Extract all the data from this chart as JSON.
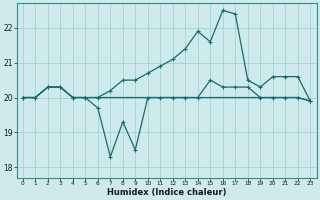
{
  "xlabel": "Humidex (Indice chaleur)",
  "background_color": "#ceeaea",
  "grid_color": "#9ccece",
  "line_color": "#1a6b6b",
  "xlim": [
    -0.5,
    23.5
  ],
  "ylim": [
    17.7,
    22.7
  ],
  "yticks": [
    18,
    19,
    20,
    21,
    22
  ],
  "xticks": [
    0,
    1,
    2,
    3,
    4,
    5,
    6,
    7,
    8,
    9,
    10,
    11,
    12,
    13,
    14,
    15,
    16,
    17,
    18,
    19,
    20,
    21,
    22,
    23
  ],
  "series1_dip": {
    "x": [
      0,
      1,
      2,
      3,
      4,
      5,
      6,
      7,
      8,
      9,
      10,
      11,
      12,
      13,
      14,
      15,
      16,
      17,
      18,
      19,
      20,
      21,
      22,
      23
    ],
    "y": [
      20.0,
      20.0,
      20.3,
      20.3,
      20.0,
      20.0,
      19.7,
      18.3,
      19.3,
      18.5,
      20.0,
      20.0,
      20.0,
      20.0,
      20.0,
      20.5,
      20.3,
      20.3,
      20.3,
      20.0,
      20.0,
      20.0,
      20.0,
      19.9
    ]
  },
  "series2_peak": {
    "x": [
      0,
      1,
      2,
      3,
      4,
      5,
      6,
      7,
      8,
      9,
      10,
      11,
      12,
      13,
      14,
      15,
      16,
      17,
      18,
      19,
      20,
      21,
      22,
      23
    ],
    "y": [
      20.0,
      20.0,
      20.3,
      20.3,
      20.0,
      20.0,
      20.0,
      20.2,
      20.5,
      20.5,
      20.7,
      20.9,
      21.1,
      21.4,
      21.9,
      21.6,
      22.5,
      22.4,
      20.5,
      20.3,
      20.6,
      20.6,
      20.6,
      19.9
    ]
  },
  "series3_flat": {
    "x": [
      0,
      1,
      2,
      3,
      4,
      5,
      6,
      7,
      8,
      9,
      10,
      11,
      12,
      13,
      14,
      15,
      16,
      17,
      18,
      19,
      20,
      21,
      22,
      23
    ],
    "y": [
      20.0,
      20.0,
      20.3,
      20.3,
      20.0,
      20.0,
      20.0,
      20.0,
      20.0,
      20.0,
      20.0,
      20.0,
      20.0,
      20.0,
      20.0,
      20.0,
      20.0,
      20.0,
      20.0,
      20.0,
      20.0,
      20.0,
      20.0,
      19.9
    ]
  }
}
